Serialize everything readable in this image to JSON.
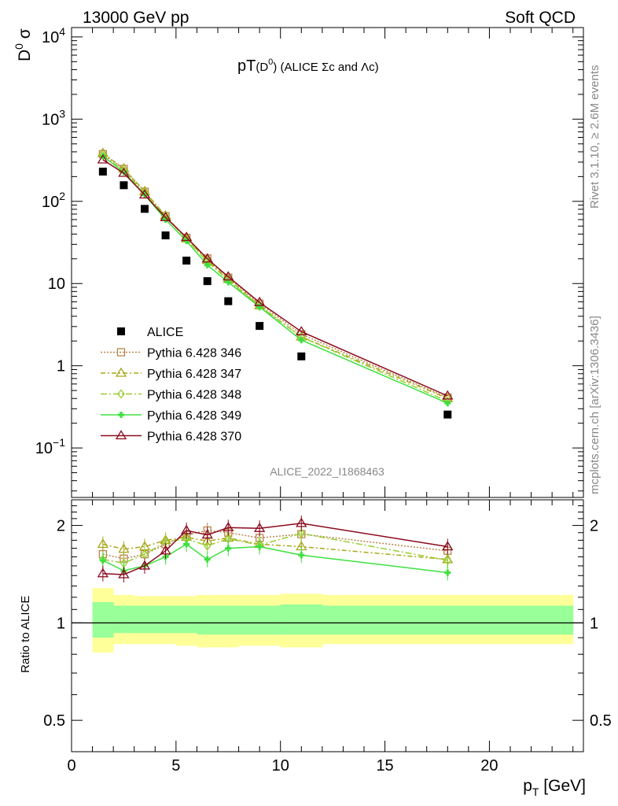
{
  "header": {
    "left": "13000 GeV pp",
    "right": "Soft QCD"
  },
  "plot_title": {
    "main": "pT",
    "sub": "(D",
    "sup": "0",
    "sub_close": ")",
    "rest": "(ALICE Σc and Λc)"
  },
  "side_labels": {
    "rivet": "Rivet 3.1.10, ≥ 2.6M events",
    "mcplots": "mcplots.cern.ch [arXiv:1306.3436]"
  },
  "analysis_id": "ALICE_2022_I1868463",
  "colors": {
    "alice": "#000000",
    "s346": "#b8864b",
    "s347": "#a8a81a",
    "s348": "#9acd32",
    "s349": "#3ee03e",
    "s370": "#8b0a1e",
    "band_yellow": "#ffff99",
    "band_green": "#99ff99"
  },
  "chart_data": [
    {
      "type": "scatter",
      "panel": "main",
      "ylabel_main": "D",
      "ylabel_sup": "0",
      "ylabel_rest": " σ",
      "yscale": "log",
      "ylim": [
        0.025,
        13000
      ],
      "xlim": [
        0,
        24.5
      ],
      "ytick_labels": [
        {
          "v": 0.1,
          "base": "10",
          "exp": "−1"
        },
        {
          "v": 1,
          "base": "1",
          "exp": ""
        },
        {
          "v": 10,
          "base": "10",
          "exp": ""
        },
        {
          "v": 100,
          "base": "10",
          "exp": "2"
        },
        {
          "v": 1000,
          "base": "10",
          "exp": "3"
        },
        {
          "v": 10000,
          "base": "10",
          "exp": "4"
        }
      ],
      "legend_position": "lower-left",
      "x": [
        1.5,
        2.5,
        3.5,
        4.5,
        5.5,
        6.5,
        7.5,
        9,
        11,
        18
      ],
      "series": [
        {
          "name": "ALICE",
          "key": "alice",
          "marker": "square",
          "values": [
            230,
            157,
            81,
            38.5,
            19,
            10.7,
            6.1,
            3.05,
            1.3,
            0.255
          ]
        },
        {
          "name": "Pythia 6.428 346",
          "key": "s346",
          "marker": "open-square",
          "dash": "2,2",
          "values": [
            375,
            248,
            131,
            66,
            36,
            20.2,
            11.8,
            5.7,
            2.42,
            0.41
          ]
        },
        {
          "name": "Pythia 6.428 347",
          "key": "s347",
          "marker": "open-triangle",
          "dash": "6,3,2,3",
          "values": [
            385,
            250,
            132,
            67,
            35,
            19.2,
            11.3,
            5.4,
            2.25,
            0.4
          ]
        },
        {
          "name": "Pythia 6.428 348",
          "key": "s348",
          "marker": "open-diamond",
          "dash": "8,3,2,3",
          "values": [
            360,
            235,
            127,
            66,
            34.5,
            18.5,
            11.0,
            5.3,
            2.24,
            0.37
          ]
        },
        {
          "name": "Pythia 6.428 349",
          "key": "s349",
          "marker": "cross",
          "dash": "",
          "values": [
            355,
            228,
            120,
            60,
            33,
            16.8,
            10.4,
            5.2,
            2.05,
            0.35
          ]
        },
        {
          "name": "Pythia 6.428 370",
          "key": "s370",
          "marker": "open-triangle",
          "dash": "",
          "values": [
            320,
            220,
            120,
            63.5,
            36.5,
            20,
            12.1,
            5.9,
            2.6,
            0.43
          ]
        }
      ]
    },
    {
      "type": "line",
      "panel": "ratio",
      "ylabel": "Ratio to ALICE",
      "xlabel_main": "p",
      "xlabel_sub": "T",
      "xlabel_rest": " [GeV]",
      "yscale": "log",
      "ylim": [
        0.4,
        2.4
      ],
      "xlim": [
        0,
        24.5
      ],
      "xticks": [
        0,
        5,
        10,
        15,
        20
      ],
      "yticks": [
        0.5,
        1,
        2
      ],
      "x": [
        1.5,
        2.5,
        3.5,
        4.5,
        5.5,
        6.5,
        7.5,
        9,
        11,
        18
      ],
      "series": [
        {
          "name": "Pythia 6.428 346",
          "key": "s346",
          "values": [
            1.63,
            1.58,
            1.63,
            1.75,
            1.87,
            1.93,
            1.9,
            1.83,
            1.88,
            1.67
          ]
        },
        {
          "name": "Pythia 6.428 347",
          "key": "s347",
          "values": [
            1.75,
            1.69,
            1.72,
            1.8,
            1.84,
            1.79,
            1.83,
            1.75,
            1.72,
            1.57
          ]
        },
        {
          "name": "Pythia 6.428 348",
          "key": "s348",
          "values": [
            1.57,
            1.53,
            1.63,
            1.78,
            1.82,
            1.73,
            1.82,
            1.74,
            1.89,
            1.56
          ]
        },
        {
          "name": "Pythia 6.428 349",
          "key": "s349",
          "values": [
            1.56,
            1.45,
            1.5,
            1.6,
            1.75,
            1.57,
            1.7,
            1.72,
            1.62,
            1.43
          ]
        },
        {
          "name": "Pythia 6.428 370",
          "key": "s370",
          "values": [
            1.42,
            1.41,
            1.5,
            1.67,
            1.93,
            1.87,
            1.97,
            1.96,
            2.03,
            1.72
          ]
        }
      ],
      "band_edges": [
        1,
        2,
        3,
        4,
        5,
        6,
        7,
        8,
        10,
        12,
        24
      ],
      "band_yellow": [
        [
          0.81,
          1.28
        ],
        [
          0.86,
          1.22
        ],
        [
          0.86,
          1.21
        ],
        [
          0.86,
          1.21
        ],
        [
          0.85,
          1.21
        ],
        [
          0.84,
          1.22
        ],
        [
          0.84,
          1.22
        ],
        [
          0.85,
          1.22
        ],
        [
          0.84,
          1.23
        ],
        [
          0.86,
          1.22
        ]
      ],
      "band_green": [
        [
          0.9,
          1.16
        ],
        [
          0.93,
          1.13
        ],
        [
          0.93,
          1.13
        ],
        [
          0.93,
          1.13
        ],
        [
          0.93,
          1.13
        ],
        [
          0.92,
          1.13
        ],
        [
          0.92,
          1.13
        ],
        [
          0.92,
          1.13
        ],
        [
          0.92,
          1.14
        ],
        [
          0.92,
          1.13
        ]
      ]
    }
  ]
}
